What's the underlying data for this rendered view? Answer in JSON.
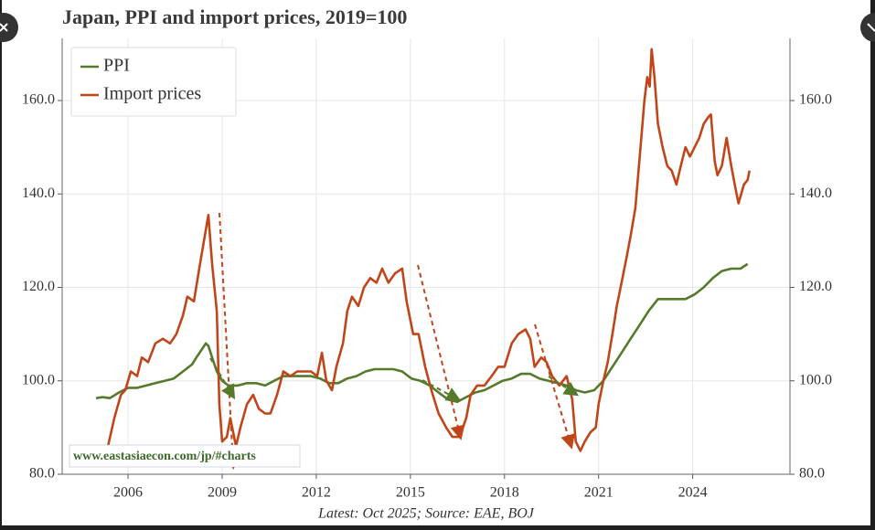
{
  "chart_data": {
    "type": "line",
    "title": "Japan, PPI and import prices, 2019=100",
    "footnote": "Latest: Oct 2025; Source: EAE, BOJ",
    "watermark": "www.eastasiaecon.com/jp/#charts",
    "xlim": [
      2003.9,
      2027.1
    ],
    "xticks": [
      2006,
      2009,
      2012,
      2015,
      2018,
      2021,
      2024
    ],
    "ylim": [
      80,
      173.3
    ],
    "yticks": [
      {
        "value": 80,
        "label": "80.0"
      },
      {
        "value": 100,
        "label": "100.0"
      },
      {
        "value": 120,
        "label": "120.0"
      },
      {
        "value": 140,
        "label": "140.0"
      },
      {
        "value": 160,
        "label": "160.0"
      }
    ],
    "grid": true,
    "legend": "upper left",
    "series": [
      {
        "name": "PPI",
        "color": "#557a2c",
        "x": [
          2004.98,
          2005.18,
          2005.42,
          2005.71,
          2006.0,
          2006.29,
          2006.58,
          2006.87,
          2007.17,
          2007.46,
          2007.75,
          2008.04,
          2008.18,
          2008.33,
          2008.48,
          2008.56,
          2008.68,
          2008.83,
          2009.0,
          2009.2,
          2009.5,
          2009.79,
          2010.08,
          2010.37,
          2010.66,
          2010.95,
          2011.24,
          2011.53,
          2011.83,
          2012.12,
          2012.41,
          2012.7,
          2012.99,
          2013.28,
          2013.57,
          2013.86,
          2014.16,
          2014.45,
          2014.74,
          2015.03,
          2015.32,
          2015.61,
          2015.9,
          2016.2,
          2016.49,
          2016.78,
          2017.07,
          2017.36,
          2017.65,
          2017.94,
          2018.23,
          2018.53,
          2018.82,
          2019.11,
          2019.4,
          2019.69,
          2019.98,
          2020.27,
          2020.56,
          2020.86,
          2021.15,
          2021.44,
          2021.73,
          2022.02,
          2022.31,
          2022.6,
          2022.89,
          2023.19,
          2023.48,
          2023.77,
          2024.06,
          2024.35,
          2024.64,
          2024.93,
          2025.23,
          2025.52,
          2025.75
        ],
        "values": [
          96.3,
          96.5,
          96.3,
          97.5,
          98.5,
          98.5,
          99,
          99.5,
          100,
          100.5,
          102,
          103.5,
          105,
          106.5,
          108,
          107.5,
          105,
          102,
          100,
          99,
          99,
          99.5,
          99.5,
          99,
          100,
          101,
          101,
          101,
          101,
          100.5,
          99.5,
          99.5,
          100.5,
          101,
          102,
          102.5,
          102.5,
          102.5,
          102,
          100.5,
          100,
          99,
          97.5,
          96,
          95.5,
          96.5,
          97.5,
          98,
          99,
          100,
          100.5,
          101.5,
          101.5,
          100.5,
          100,
          99.5,
          99,
          98,
          97.5,
          98,
          100,
          103,
          106,
          109,
          112,
          115,
          117.5,
          117.5,
          117.5,
          117.5,
          118.5,
          120,
          122,
          123.5,
          124,
          124,
          125
        ]
      },
      {
        "name": "Import prices",
        "color": "#c0461a",
        "x": [
          2005.13,
          2005.36,
          2005.56,
          2005.77,
          2005.91,
          2006.09,
          2006.29,
          2006.44,
          2006.64,
          2006.87,
          2007.11,
          2007.34,
          2007.54,
          2007.75,
          2007.89,
          2008.1,
          2008.27,
          2008.42,
          2008.56,
          2008.68,
          2008.83,
          2008.91,
          2009.0,
          2009.15,
          2009.26,
          2009.44,
          2009.58,
          2009.79,
          2009.99,
          2010.17,
          2010.37,
          2010.54,
          2010.75,
          2010.95,
          2011.18,
          2011.39,
          2011.62,
          2011.83,
          2012.03,
          2012.18,
          2012.32,
          2012.5,
          2012.64,
          2012.85,
          2012.99,
          2013.14,
          2013.34,
          2013.52,
          2013.72,
          2013.92,
          2014.1,
          2014.3,
          2014.51,
          2014.74,
          2014.88,
          2015.09,
          2015.26,
          2015.47,
          2015.67,
          2015.9,
          2016.14,
          2016.34,
          2016.57,
          2016.78,
          2016.92,
          2017.13,
          2017.36,
          2017.59,
          2017.8,
          2018.0,
          2018.23,
          2018.44,
          2018.67,
          2018.82,
          2018.96,
          2019.17,
          2019.34,
          2019.52,
          2019.75,
          2019.98,
          2020.16,
          2020.27,
          2020.42,
          2020.56,
          2020.74,
          2020.91,
          2021.0,
          2021.15,
          2021.29,
          2021.44,
          2021.58,
          2021.73,
          2021.88,
          2022.02,
          2022.17,
          2022.31,
          2022.46,
          2022.55,
          2022.63,
          2022.69,
          2022.78,
          2022.89,
          2023.04,
          2023.19,
          2023.33,
          2023.48,
          2023.62,
          2023.77,
          2023.91,
          2024.06,
          2024.21,
          2024.35,
          2024.5,
          2024.58,
          2024.7,
          2024.79,
          2024.93,
          2025.08,
          2025.23,
          2025.37,
          2025.46,
          2025.63,
          2025.75,
          2025.81
        ],
        "values": [
          84,
          86,
          92,
          97,
          98,
          102,
          101,
          105,
          104,
          108,
          109,
          108,
          110,
          114,
          118,
          117,
          124,
          130,
          135.5,
          125,
          115,
          95,
          87,
          88,
          92,
          86,
          90,
          95,
          97,
          94,
          93,
          93,
          97,
          102,
          101,
          102,
          102,
          102,
          101,
          106,
          100,
          98,
          103,
          108,
          115,
          118,
          116,
          120,
          122,
          121,
          124,
          121,
          123,
          124,
          117,
          110,
          110,
          103,
          98,
          93,
          90,
          88,
          88,
          92,
          97,
          99,
          99,
          101,
          103,
          103,
          108,
          110,
          111,
          109,
          103,
          105,
          104,
          101,
          99,
          101,
          96,
          87,
          85,
          87,
          89,
          90,
          95,
          100,
          104,
          110,
          116,
          121,
          126,
          131,
          137,
          148,
          160,
          165,
          163,
          171,
          165,
          155,
          150,
          146,
          145,
          142,
          146,
          150,
          148,
          150,
          152,
          155,
          156.5,
          157,
          147,
          144,
          146,
          152,
          146,
          141,
          138,
          142,
          143,
          145
        ]
      }
    ]
  }
}
